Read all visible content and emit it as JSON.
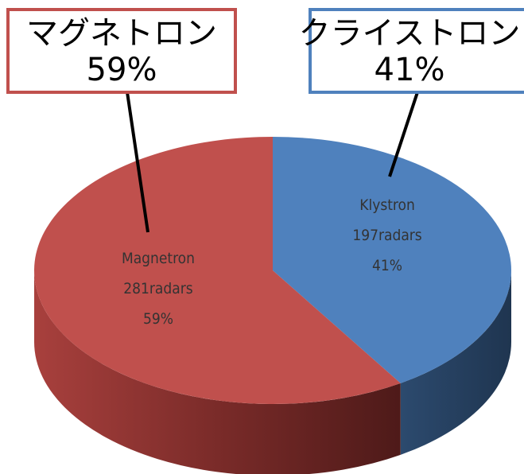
{
  "chart_data": {
    "type": "pie",
    "categories": [
      "Klystron",
      "Magnetron"
    ],
    "values": [
      41,
      59
    ],
    "value_labels": [
      "41%",
      "59%"
    ],
    "counts": [
      197,
      281
    ],
    "count_labels": [
      "197radars",
      "281radars"
    ],
    "callout_names": [
      "クライストロン",
      "マグネトロン"
    ],
    "colors": [
      "#4f81bd",
      "#c0504d"
    ],
    "legend": false
  }
}
